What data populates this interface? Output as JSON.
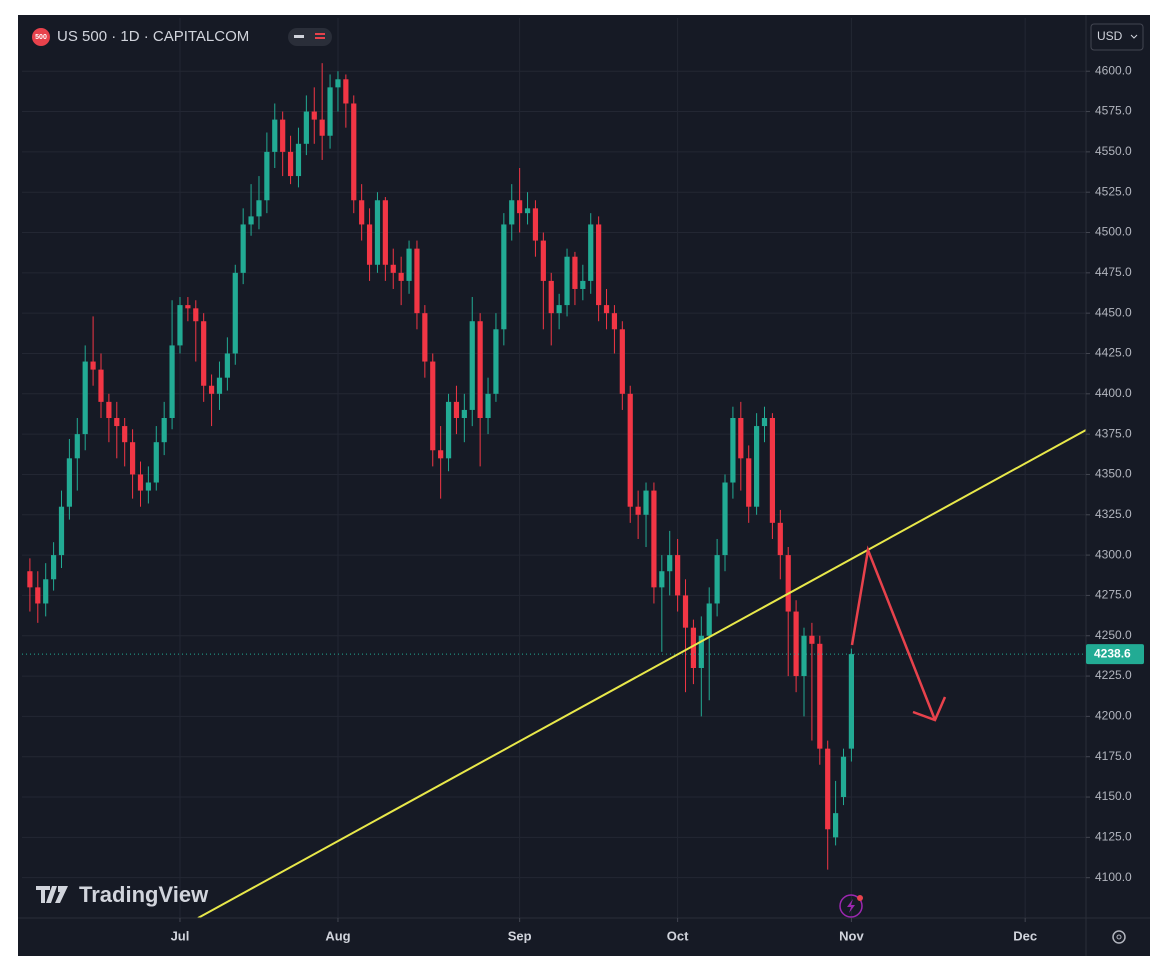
{
  "chart_data": {
    "type": "candlestick",
    "title": "US 500 · 1D · CAPITALCOM",
    "badge": "500",
    "currency": "USD",
    "watermark": "TradingView",
    "up_color": "#22ab94",
    "down_color": "#f23645",
    "grid": true,
    "xlim": [
      -1,
      133.7
    ],
    "xticks": [
      {
        "value": 19,
        "label": "Jul"
      },
      {
        "value": 39,
        "label": "Aug"
      },
      {
        "value": 62,
        "label": "Sep"
      },
      {
        "value": 82,
        "label": "Oct"
      },
      {
        "value": 104,
        "label": "Nov"
      },
      {
        "value": 126,
        "label": "Dec"
      }
    ],
    "ylim": [
      4075,
      4633
    ],
    "yticks": [
      {
        "value": 4100,
        "label": "4100.0"
      },
      {
        "value": 4125,
        "label": "4125.0"
      },
      {
        "value": 4150,
        "label": "4150.0"
      },
      {
        "value": 4175,
        "label": "4175.0"
      },
      {
        "value": 4200,
        "label": "4200.0"
      },
      {
        "value": 4225,
        "label": "4225.0"
      },
      {
        "value": 4250,
        "label": "4250.0"
      },
      {
        "value": 4275,
        "label": "4275.0"
      },
      {
        "value": 4300,
        "label": "4300.0"
      },
      {
        "value": 4325,
        "label": "4325.0"
      },
      {
        "value": 4350,
        "label": "4350.0"
      },
      {
        "value": 4375,
        "label": "4375.0"
      },
      {
        "value": 4400,
        "label": "4400.0"
      },
      {
        "value": 4425,
        "label": "4425.0"
      },
      {
        "value": 4450,
        "label": "4450.0"
      },
      {
        "value": 4475,
        "label": "4475.0"
      },
      {
        "value": 4500,
        "label": "4500.0"
      },
      {
        "value": 4525,
        "label": "4525.0"
      },
      {
        "value": 4550,
        "label": "4550.0"
      },
      {
        "value": 4575,
        "label": "4575.0"
      },
      {
        "value": 4600,
        "label": "4600.0"
      }
    ],
    "open": [
      4290,
      4280,
      4270,
      4285,
      4300,
      4330,
      4360,
      4375,
      4420,
      4415,
      4395,
      4385,
      4380,
      4370,
      4350,
      4340,
      4345,
      4370,
      4385,
      4430,
      4455,
      4453,
      4445,
      4405,
      4400,
      4410,
      4425,
      4475,
      4505,
      4510,
      4520,
      4550,
      4570,
      4550,
      4535,
      4555,
      4575,
      4570,
      4560,
      4590,
      4595,
      4580,
      4520,
      4505,
      4480,
      4520,
      4480,
      4475,
      4470,
      4490,
      4450,
      4420,
      4365,
      4360,
      4395,
      4385,
      4390,
      4445,
      4385,
      4400,
      4440,
      4505,
      4520,
      4512,
      4515,
      4495,
      4470,
      4450,
      4455,
      4485,
      4465,
      4470,
      4505,
      4455,
      4450,
      4440,
      4400,
      4330,
      4325,
      4340,
      4280,
      4290,
      4300,
      4275,
      4255,
      4230,
      4250,
      4270,
      4300,
      4345,
      4385,
      4360,
      4330,
      4380,
      4385,
      4320,
      4300,
      4265,
      4225,
      4250,
      4245,
      4180,
      4125,
      4150,
      4180
    ],
    "high": [
      4298,
      4290,
      4295,
      4308,
      4340,
      4372,
      4385,
      4430,
      4448,
      4425,
      4400,
      4395,
      4385,
      4378,
      4358,
      4355,
      4380,
      4395,
      4458,
      4460,
      4460,
      4458,
      4450,
      4412,
      4420,
      4435,
      4480,
      4515,
      4530,
      4535,
      4562,
      4580,
      4575,
      4560,
      4565,
      4585,
      4590,
      4605,
      4598,
      4600,
      4598,
      4585,
      4530,
      4515,
      4525,
      4522,
      4490,
      4485,
      4495,
      4495,
      4455,
      4425,
      4380,
      4400,
      4405,
      4400,
      4460,
      4450,
      4410,
      4450,
      4512,
      4530,
      4540,
      4525,
      4520,
      4500,
      4475,
      4462,
      4490,
      4488,
      4480,
      4512,
      4510,
      4465,
      4455,
      4445,
      4405,
      4340,
      4345,
      4345,
      4300,
      4315,
      4310,
      4285,
      4260,
      4262,
      4280,
      4310,
      4350,
      4392,
      4395,
      4368,
      4388,
      4392,
      4388,
      4328,
      4305,
      4272,
      4255,
      4258,
      4250,
      4185,
      4160,
      4180,
      4242
    ],
    "low": [
      4265,
      4258,
      4262,
      4278,
      4292,
      4322,
      4340,
      4365,
      4405,
      4385,
      4370,
      4360,
      4355,
      4335,
      4330,
      4332,
      4340,
      4362,
      4378,
      4425,
      4445,
      4420,
      4395,
      4380,
      4390,
      4402,
      4418,
      4468,
      4498,
      4502,
      4512,
      4540,
      4535,
      4530,
      4528,
      4548,
      4555,
      4545,
      4552,
      4575,
      4565,
      4512,
      4495,
      4470,
      4475,
      4470,
      4465,
      4455,
      4462,
      4440,
      4410,
      4355,
      4335,
      4352,
      4375,
      4370,
      4380,
      4355,
      4375,
      4395,
      4430,
      4495,
      4500,
      4505,
      4485,
      4440,
      4430,
      4440,
      4448,
      4455,
      4458,
      4462,
      4445,
      4440,
      4425,
      4390,
      4320,
      4310,
      4305,
      4270,
      4240,
      4275,
      4265,
      4215,
      4220,
      4200,
      4210,
      4262,
      4290,
      4335,
      4340,
      4320,
      4325,
      4370,
      4310,
      4285,
      4225,
      4215,
      4200,
      4185,
      4170,
      4105,
      4120,
      4145,
      4172
    ],
    "close": [
      4280,
      4270,
      4285,
      4300,
      4330,
      4360,
      4375,
      4420,
      4415,
      4395,
      4385,
      4380,
      4370,
      4350,
      4340,
      4345,
      4370,
      4385,
      4430,
      4455,
      4453,
      4445,
      4405,
      4400,
      4410,
      4425,
      4475,
      4505,
      4510,
      4520,
      4550,
      4570,
      4550,
      4535,
      4555,
      4575,
      4570,
      4560,
      4590,
      4595,
      4580,
      4520,
      4505,
      4480,
      4520,
      4480,
      4475,
      4470,
      4490,
      4450,
      4420,
      4365,
      4360,
      4395,
      4385,
      4390,
      4445,
      4385,
      4400,
      4440,
      4505,
      4520,
      4512,
      4515,
      4495,
      4470,
      4450,
      4455,
      4485,
      4465,
      4470,
      4505,
      4455,
      4450,
      4440,
      4400,
      4330,
      4325,
      4340,
      4280,
      4290,
      4300,
      4275,
      4255,
      4230,
      4250,
      4270,
      4300,
      4345,
      4385,
      4360,
      4330,
      4380,
      4385,
      4320,
      4300,
      4265,
      4225,
      4250,
      4245,
      4180,
      4130,
      4140,
      4175,
      4238.6
    ]
  }
}
